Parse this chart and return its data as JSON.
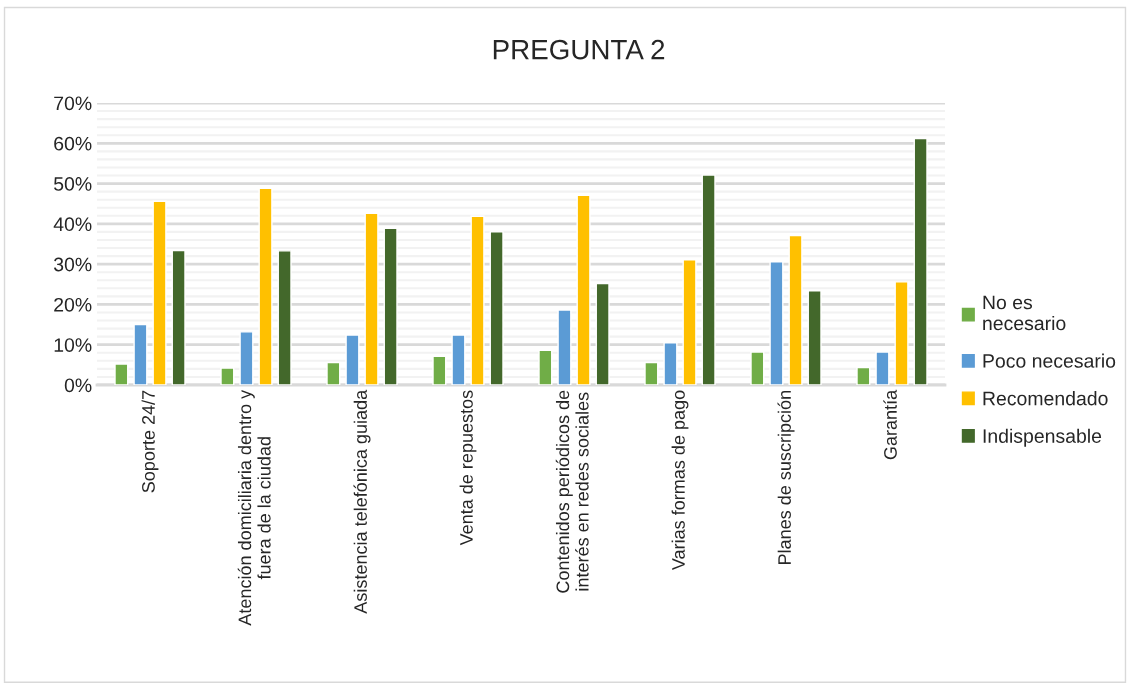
{
  "chart_data": {
    "type": "bar",
    "title": "PREGUNTA 2",
    "categories": [
      "Soporte 24/7",
      "Atención domiciliaria dentro y\nfuera de la ciudad",
      "Asistencia telefónica guiada",
      "Venta de repuestos",
      "Contenidos periódicos de\ninterés en redes sociales",
      "Varias formas de pago",
      "Planes de suscripción",
      "Garantía"
    ],
    "series": [
      {
        "name": "No es\nnecesario",
        "color": "#70ad47",
        "values": [
          5.2,
          4.2,
          5.6,
          7.1,
          8.6,
          5.6,
          8.2,
          4.3
        ]
      },
      {
        "name": "Poco necesario",
        "color": "#5b9bd5",
        "values": [
          15.0,
          13.2,
          12.4,
          12.4,
          18.6,
          10.5,
          30.6,
          8.2
        ]
      },
      {
        "name": "Recomendado",
        "color": "#ffc000",
        "values": [
          45.6,
          48.8,
          42.6,
          41.9,
          47.1,
          31.1,
          37.1,
          25.6
        ]
      },
      {
        "name": "Indispensable",
        "color": "#43682b",
        "values": [
          33.4,
          33.3,
          38.9,
          38.0,
          25.2,
          52.1,
          23.4,
          61.2
        ]
      }
    ],
    "ylim": [
      0,
      70
    ],
    "yticks": [
      {
        "value": 0,
        "label": "0%"
      },
      {
        "value": 2,
        "label": null
      },
      {
        "value": 4,
        "label": null
      },
      {
        "value": 6,
        "label": null
      },
      {
        "value": 8,
        "label": null
      },
      {
        "value": 10,
        "label": "10%"
      },
      {
        "value": 12,
        "label": null
      },
      {
        "value": 14,
        "label": null
      },
      {
        "value": 16,
        "label": null
      },
      {
        "value": 18,
        "label": null
      },
      {
        "value": 20,
        "label": "20%"
      },
      {
        "value": 22,
        "label": null
      },
      {
        "value": 24,
        "label": null
      },
      {
        "value": 26,
        "label": null
      },
      {
        "value": 28,
        "label": null
      },
      {
        "value": 30,
        "label": "30%"
      },
      {
        "value": 32,
        "label": null
      },
      {
        "value": 34,
        "label": null
      },
      {
        "value": 36,
        "label": null
      },
      {
        "value": 38,
        "label": null
      },
      {
        "value": 40,
        "label": "40%"
      },
      {
        "value": 42,
        "label": null
      },
      {
        "value": 44,
        "label": null
      },
      {
        "value": 46,
        "label": null
      },
      {
        "value": 48,
        "label": null
      },
      {
        "value": 50,
        "label": "50%"
      },
      {
        "value": 52,
        "label": null
      },
      {
        "value": 54,
        "label": null
      },
      {
        "value": 56,
        "label": null
      },
      {
        "value": 58,
        "label": null
      },
      {
        "value": 60,
        "label": "60%"
      },
      {
        "value": 62,
        "label": null
      },
      {
        "value": 64,
        "label": null
      },
      {
        "value": 66,
        "label": null
      },
      {
        "value": 68,
        "label": null
      },
      {
        "value": 70,
        "label": "70%"
      }
    ],
    "grid": "y",
    "legend": "right"
  }
}
